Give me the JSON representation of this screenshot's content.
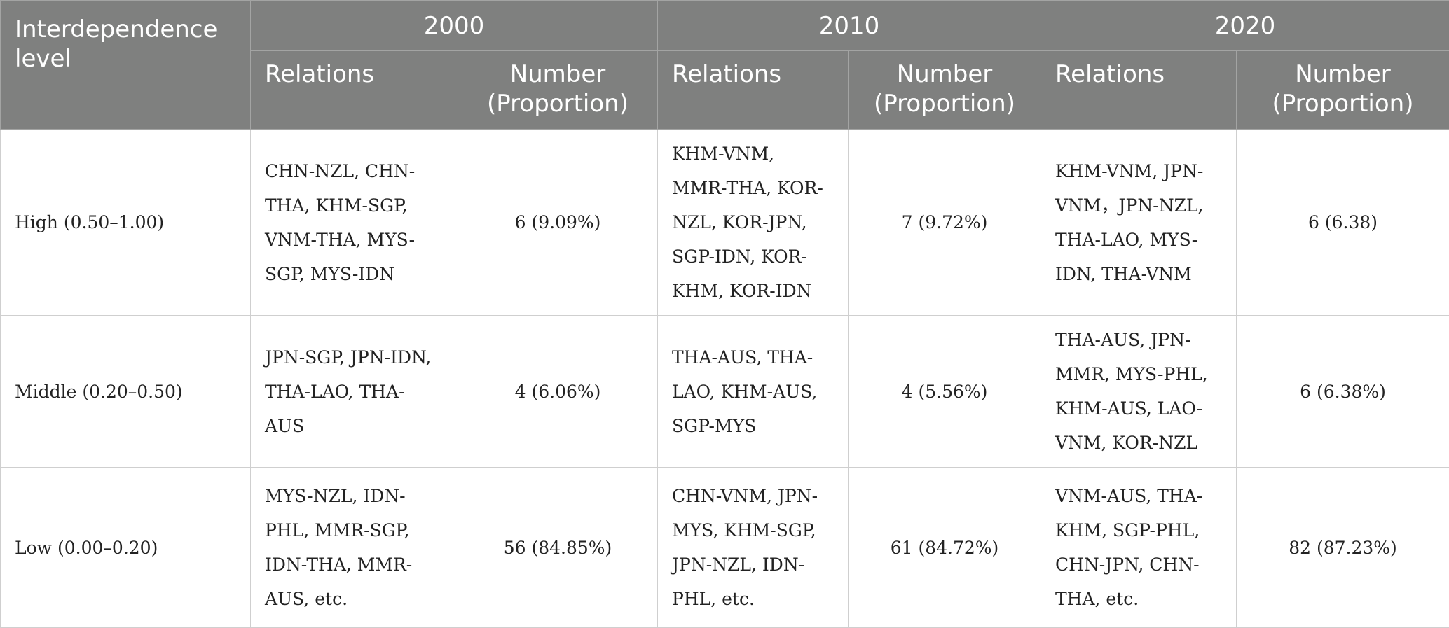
{
  "header": {
    "level_label": [
      "Interdependence",
      "level"
    ],
    "years": [
      "2000",
      "2010",
      "2020"
    ],
    "relations_label": "Relations",
    "number_label": [
      "Number",
      "(Proportion)"
    ]
  },
  "rows": [
    {
      "level": "High (0.50–1.00)",
      "cells": [
        {
          "relations": [
            "CHN-NZL, CHN-",
            "THA, KHM-SGP,",
            "VNM-THA, MYS-",
            "SGP, MYS-IDN"
          ],
          "number": "6 (9.09%)"
        },
        {
          "relations": [
            "KHM-VNM,",
            "MMR-THA, KOR-",
            "NZL, KOR-JPN,",
            "SGP-IDN, KOR-",
            "KHM, KOR-IDN"
          ],
          "number": "7 (9.72%)"
        },
        {
          "relations": [
            "KHM-VNM, JPN-",
            "VNM，JPN-NZL,",
            "THA-LAO, MYS-",
            "IDN, THA-VNM"
          ],
          "number": "6 (6.38)"
        }
      ]
    },
    {
      "level": "Middle (0.20–0.50)",
      "cells": [
        {
          "relations": [
            "JPN-SGP, JPN-IDN,",
            "THA-LAO, THA-",
            "AUS"
          ],
          "number": "4 (6.06%)"
        },
        {
          "relations": [
            "THA-AUS, THA-",
            "LAO, KHM-AUS,",
            "SGP-MYS"
          ],
          "number": "4 (5.56%)"
        },
        {
          "relations": [
            "THA-AUS, JPN-",
            "MMR, MYS-PHL,",
            "KHM-AUS, LAO-",
            "VNM, KOR-NZL"
          ],
          "number": "6 (6.38%)"
        }
      ]
    },
    {
      "level": "Low (0.00–0.20)",
      "cells": [
        {
          "relations": [
            "MYS-NZL, IDN-",
            "PHL, MMR-SGP,",
            "IDN-THA, MMR-",
            "AUS, etc."
          ],
          "number": "56 (84.85%)"
        },
        {
          "relations": [
            "CHN-VNM, JPN-",
            "MYS, KHM-SGP,",
            "JPN-NZL, IDN-",
            "PHL, etc."
          ],
          "number": "61 (84.72%)"
        },
        {
          "relations": [
            "VNM-AUS, THA-",
            "KHM, SGP-PHL,",
            "CHN-JPN, CHN-",
            "THA, etc."
          ],
          "number": "82 (87.23%)"
        }
      ]
    }
  ]
}
